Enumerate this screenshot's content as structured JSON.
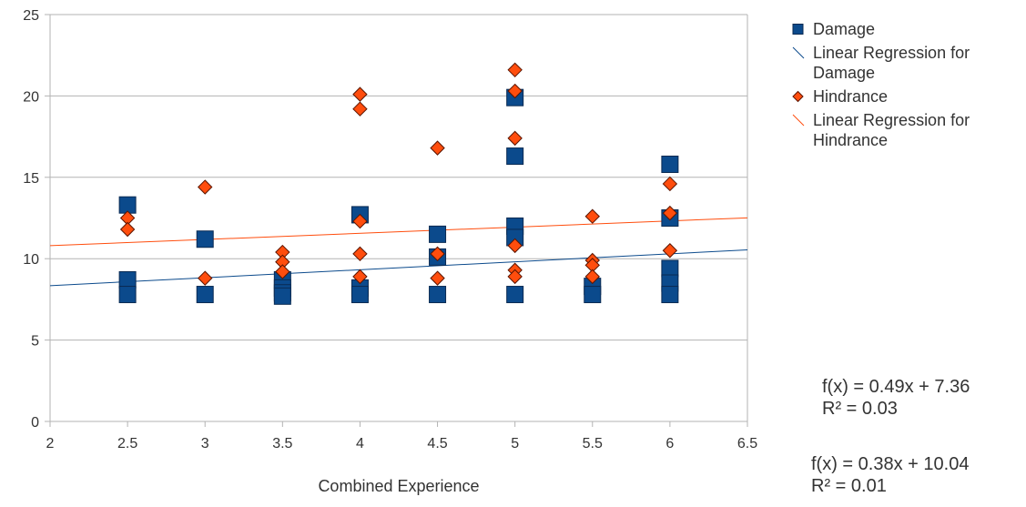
{
  "chart_data": {
    "type": "scatter",
    "title": "",
    "xlabel": "Combined Experience",
    "ylabel": "",
    "xlim": [
      2,
      6.5
    ],
    "ylim": [
      0,
      25
    ],
    "x_ticks": [
      "2",
      "2.5",
      "3",
      "3.5",
      "4",
      "4.5",
      "5",
      "5.5",
      "6",
      "6.5"
    ],
    "y_ticks": [
      "0",
      "5",
      "10",
      "15",
      "20",
      "25"
    ],
    "grid": "horizontal",
    "legend_position": "right",
    "series": [
      {
        "name": "Damage",
        "marker": "square",
        "color": "#0b4a8c",
        "points": [
          [
            2.5,
            13.3
          ],
          [
            2.5,
            8.7
          ],
          [
            2.5,
            7.8
          ],
          [
            3,
            11.2
          ],
          [
            3,
            7.8
          ],
          [
            3.5,
            8.7
          ],
          [
            3.5,
            8.2
          ],
          [
            3.5,
            7.9
          ],
          [
            3.5,
            7.7
          ],
          [
            4,
            12.7
          ],
          [
            4,
            8.2
          ],
          [
            4,
            7.8
          ],
          [
            4.5,
            11.5
          ],
          [
            4.5,
            10.1
          ],
          [
            4.5,
            7.8
          ],
          [
            5,
            19.9
          ],
          [
            5,
            16.3
          ],
          [
            5,
            12.0
          ],
          [
            5,
            11.3
          ],
          [
            5,
            7.8
          ],
          [
            5.5,
            8.3
          ],
          [
            5.5,
            7.8
          ],
          [
            6,
            15.8
          ],
          [
            6,
            12.5
          ],
          [
            6,
            9.4
          ],
          [
            6,
            8.5
          ],
          [
            6,
            7.8
          ]
        ]
      },
      {
        "name": "Hindrance",
        "marker": "diamond",
        "color": "#ff4d0d",
        "points": [
          [
            2.5,
            12.5
          ],
          [
            2.5,
            11.8
          ],
          [
            3,
            14.4
          ],
          [
            3,
            8.8
          ],
          [
            3.5,
            10.4
          ],
          [
            3.5,
            9.8
          ],
          [
            3.5,
            9.2
          ],
          [
            4,
            20.1
          ],
          [
            4,
            19.2
          ],
          [
            4,
            12.3
          ],
          [
            4,
            10.3
          ],
          [
            4,
            8.9
          ],
          [
            4.5,
            16.8
          ],
          [
            4.5,
            10.3
          ],
          [
            4.5,
            8.8
          ],
          [
            5,
            21.6
          ],
          [
            5,
            20.3
          ],
          [
            5,
            17.4
          ],
          [
            5,
            10.8
          ],
          [
            5,
            9.3
          ],
          [
            5,
            8.9
          ],
          [
            5.5,
            12.6
          ],
          [
            5.5,
            9.9
          ],
          [
            5.5,
            9.6
          ],
          [
            5.5,
            8.9
          ],
          [
            6,
            14.6
          ],
          [
            6,
            12.8
          ],
          [
            6,
            10.5
          ]
        ]
      }
    ],
    "regression_lines": [
      {
        "name": "Linear Regression for Damage",
        "color": "#0b4a8c",
        "slope": 0.49,
        "intercept": 7.36
      },
      {
        "name": "Linear Regression for Hindrance",
        "color": "#ff4d0d",
        "slope": 0.38,
        "intercept": 10.04
      }
    ],
    "equations": [
      {
        "formula": "f(x) = 0.49x + 7.36",
        "r2": "R² = 0.03"
      },
      {
        "formula": "f(x) = 0.38x + 10.04",
        "r2": "R² = 0.01"
      }
    ],
    "legend": [
      {
        "label": "Damage",
        "kind": "square",
        "color": "#0b4a8c"
      },
      {
        "label": "Linear Regression for Damage",
        "kind": "line",
        "color": "#0b4a8c"
      },
      {
        "label": "Hindrance",
        "kind": "diamond",
        "color": "#ff4d0d"
      },
      {
        "label": "Linear Regression for Hindrance",
        "kind": "line",
        "color": "#ff4d0d"
      }
    ]
  }
}
